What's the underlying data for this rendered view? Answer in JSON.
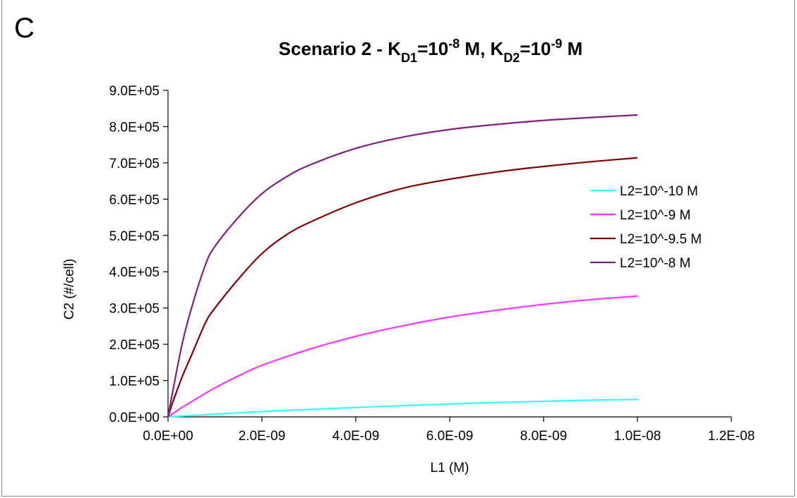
{
  "panel_letter": "C",
  "chart_data": {
    "type": "line",
    "title": {
      "prefix": "Scenario 2 - K",
      "sub1": "D1",
      "mid1": "=10",
      "sup1": "-8",
      "mid2": " M,  K",
      "sub2": "D2",
      "mid3": "=10",
      "sup2": "-9",
      "suffix": " M"
    },
    "xlabel": "L1 (M)",
    "ylabel": "C2 (#/cell)",
    "xlim": [
      0,
      1.2e-08
    ],
    "ylim": [
      0,
      900000
    ],
    "x_ticks": [
      "0.0E+00",
      "2.0E-09",
      "4.0E-09",
      "6.0E-09",
      "8.0E-09",
      "1.0E-08",
      "1.2E-08"
    ],
    "y_ticks": [
      "0.0E+00",
      "1.0E+05",
      "2.0E+05",
      "3.0E+05",
      "4.0E+05",
      "5.0E+05",
      "6.0E+05",
      "7.0E+05",
      "8.0E+05",
      "9.0E+05"
    ],
    "grid": false,
    "legend_position": "right",
    "series": [
      {
        "name": "L2=10^-10 M",
        "color": "#33ffff",
        "x": [
          0,
          1e-10,
          3e-10,
          5e-10,
          1e-09,
          1.5e-09,
          2e-09,
          3e-09,
          4e-09,
          5e-09,
          6e-09,
          7e-09,
          8e-09,
          9e-09,
          1e-08
        ],
        "y": [
          0,
          800,
          2300,
          3800,
          7500,
          11000,
          14500,
          20500,
          26000,
          31000,
          35500,
          39500,
          43000,
          46000,
          48000
        ]
      },
      {
        "name": "L2=10^-9 M",
        "color": "#ff33ff",
        "x": [
          0,
          1e-10,
          3e-10,
          5e-10,
          1e-09,
          1.5e-09,
          2e-09,
          3e-09,
          4e-09,
          5e-09,
          6e-09,
          7e-09,
          8e-09,
          9e-09,
          1e-08
        ],
        "y": [
          0,
          9000,
          26000,
          42000,
          80000,
          113000,
          142000,
          186000,
          222000,
          251000,
          275000,
          294000,
          310000,
          323000,
          333000
        ]
      },
      {
        "name": "L2=10^-9.5 M",
        "color": "#800000",
        "x": [
          0,
          1e-10,
          3e-10,
          5e-10,
          8e-10,
          1e-09,
          1.5e-09,
          2e-09,
          2.5e-09,
          3e-09,
          4e-09,
          5e-09,
          6e-09,
          7e-09,
          8e-09,
          9e-09,
          1e-08
        ],
        "y": [
          0,
          40000,
          110000,
          170000,
          260000,
          300000,
          380000,
          450000,
          500000,
          535000,
          590000,
          630000,
          655000,
          675000,
          690000,
          703000,
          714000
        ]
      },
      {
        "name": "L2=10^-8 M",
        "color": "#7f1f80",
        "x": [
          0,
          1e-10,
          3e-10,
          5e-10,
          8e-10,
          1e-09,
          1.5e-09,
          2e-09,
          2.5e-09,
          3e-09,
          4e-09,
          5e-09,
          6e-09,
          7e-09,
          8e-09,
          9e-09,
          1e-08
        ],
        "y": [
          0,
          70000,
          200000,
          300000,
          420000,
          470000,
          550000,
          615000,
          660000,
          693000,
          740000,
          771000,
          792000,
          806000,
          817000,
          825000,
          832000
        ]
      }
    ]
  }
}
